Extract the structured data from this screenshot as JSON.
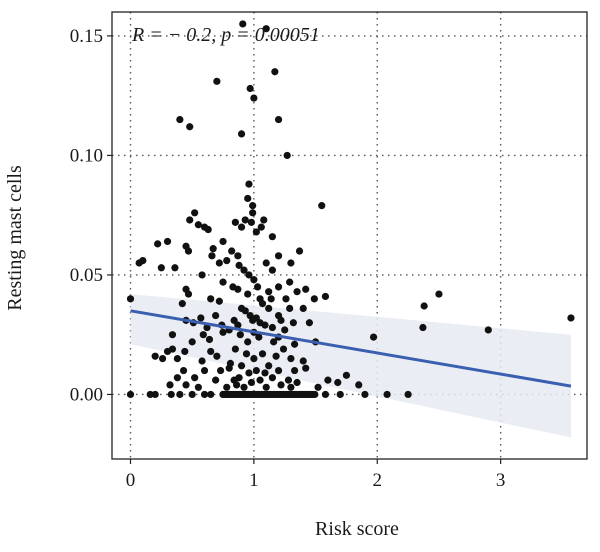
{
  "chart_data": {
    "type": "scatter",
    "title": "",
    "xlabel": "Risk score",
    "ylabel": "Resting mast cells",
    "annotation": "R = − 0.2, p = 0.00051",
    "xlim": [
      -0.15,
      3.7
    ],
    "ylim": [
      -0.027,
      0.16
    ],
    "xticks": [
      0,
      1,
      2,
      3
    ],
    "xtick_labels": [
      "0",
      "1",
      "2",
      "3"
    ],
    "yticks": [
      0.0,
      0.05,
      0.1,
      0.15
    ],
    "ytick_labels": [
      "0.00",
      "0.05",
      "0.10",
      "0.15"
    ],
    "grid": "dotted major gridlines",
    "colors": {
      "points": "#111111",
      "fit_line": "#3a5fb0",
      "ci_band": "#e6ebf2",
      "grid": "#555555",
      "frame": "#222222"
    },
    "fit": {
      "x": [
        0,
        3.57
      ],
      "y": [
        0.035,
        0.0035
      ],
      "ci_low": [
        0.021,
        -0.018
      ],
      "ci_high": [
        0.042,
        0.025
      ]
    },
    "points": [
      [
        0.91,
        0.155
      ],
      [
        1.1,
        0.153
      ],
      [
        1.17,
        0.135
      ],
      [
        0.7,
        0.131
      ],
      [
        0.97,
        0.128
      ],
      [
        1.0,
        0.124
      ],
      [
        0.4,
        0.115
      ],
      [
        0.48,
        0.112
      ],
      [
        1.2,
        0.115
      ],
      [
        0.9,
        0.109
      ],
      [
        1.27,
        0.1
      ],
      [
        0.96,
        0.088
      ],
      [
        0.95,
        0.082
      ],
      [
        0.99,
        0.079
      ],
      [
        0.99,
        0.076
      ],
      [
        1.55,
        0.079
      ],
      [
        0.52,
        0.076
      ],
      [
        0.48,
        0.073
      ],
      [
        0.55,
        0.071
      ],
      [
        0.6,
        0.07
      ],
      [
        0.63,
        0.069
      ],
      [
        0.67,
        0.061
      ],
      [
        0.75,
        0.064
      ],
      [
        0.85,
        0.072
      ],
      [
        0.9,
        0.07
      ],
      [
        0.93,
        0.073
      ],
      [
        0.98,
        0.072
      ],
      [
        1.06,
        0.07
      ],
      [
        1.08,
        0.073
      ],
      [
        1.02,
        0.068
      ],
      [
        1.15,
        0.066
      ],
      [
        0.3,
        0.064
      ],
      [
        0.22,
        0.063
      ],
      [
        0.45,
        0.062
      ],
      [
        0.47,
        0.06
      ],
      [
        0.66,
        0.058
      ],
      [
        0.72,
        0.055
      ],
      [
        0.78,
        0.056
      ],
      [
        0.82,
        0.06
      ],
      [
        0.87,
        0.058
      ],
      [
        0.1,
        0.056
      ],
      [
        0.07,
        0.055
      ],
      [
        0.25,
        0.053
      ],
      [
        0.36,
        0.053
      ],
      [
        0.58,
        0.05
      ],
      [
        0.88,
        0.054
      ],
      [
        0.92,
        0.052
      ],
      [
        0.96,
        0.05
      ],
      [
        1.1,
        0.055
      ],
      [
        1.15,
        0.052
      ],
      [
        1.2,
        0.058
      ],
      [
        1.3,
        0.055
      ],
      [
        1.37,
        0.06
      ],
      [
        1.0,
        0.048
      ],
      [
        1.03,
        0.045
      ],
      [
        0.87,
        0.044
      ],
      [
        1.12,
        0.043
      ],
      [
        1.2,
        0.045
      ],
      [
        1.29,
        0.047
      ],
      [
        0.45,
        0.044
      ],
      [
        0.47,
        0.042
      ],
      [
        0.75,
        0.047
      ],
      [
        0.83,
        0.045
      ],
      [
        0.95,
        0.042
      ],
      [
        0.65,
        0.04
      ],
      [
        0.72,
        0.039
      ],
      [
        0.0,
        0.04
      ],
      [
        0.42,
        0.038
      ],
      [
        1.05,
        0.04
      ],
      [
        1.07,
        0.038
      ],
      [
        1.14,
        0.04
      ],
      [
        1.26,
        0.04
      ],
      [
        1.35,
        0.043
      ],
      [
        1.42,
        0.044
      ],
      [
        1.49,
        0.04
      ],
      [
        1.58,
        0.041
      ],
      [
        0.9,
        0.036
      ],
      [
        0.93,
        0.035
      ],
      [
        0.97,
        0.033
      ],
      [
        1.02,
        0.032
      ],
      [
        0.84,
        0.031
      ],
      [
        0.87,
        0.029
      ],
      [
        0.99,
        0.031
      ],
      [
        1.12,
        0.036
      ],
      [
        1.2,
        0.033
      ],
      [
        1.29,
        0.036
      ],
      [
        1.4,
        0.036
      ],
      [
        0.45,
        0.031
      ],
      [
        0.51,
        0.03
      ],
      [
        0.57,
        0.032
      ],
      [
        0.62,
        0.028
      ],
      [
        0.69,
        0.033
      ],
      [
        0.74,
        0.029
      ],
      [
        1.05,
        0.03
      ],
      [
        1.09,
        0.029
      ],
      [
        1.15,
        0.028
      ],
      [
        1.22,
        0.031
      ],
      [
        1.32,
        0.03
      ],
      [
        1.45,
        0.03
      ],
      [
        0.34,
        0.025
      ],
      [
        0.5,
        0.022
      ],
      [
        0.59,
        0.025
      ],
      [
        0.64,
        0.023
      ],
      [
        0.75,
        0.026
      ],
      [
        0.8,
        0.027
      ],
      [
        0.89,
        0.025
      ],
      [
        0.95,
        0.022
      ],
      [
        1.0,
        0.026
      ],
      [
        1.04,
        0.024
      ],
      [
        1.16,
        0.022
      ],
      [
        1.2,
        0.024
      ],
      [
        1.25,
        0.027
      ],
      [
        1.33,
        0.021
      ],
      [
        1.5,
        0.022
      ],
      [
        0.3,
        0.018
      ],
      [
        0.34,
        0.019
      ],
      [
        0.44,
        0.018
      ],
      [
        0.65,
        0.018
      ],
      [
        0.7,
        0.016
      ],
      [
        0.85,
        0.019
      ],
      [
        0.94,
        0.017
      ],
      [
        1.0,
        0.015
      ],
      [
        1.07,
        0.017
      ],
      [
        1.18,
        0.016
      ],
      [
        1.24,
        0.019
      ],
      [
        1.3,
        0.015
      ],
      [
        0.2,
        0.016
      ],
      [
        0.26,
        0.015
      ],
      [
        0.38,
        0.015
      ],
      [
        0.58,
        0.014
      ],
      [
        0.81,
        0.013
      ],
      [
        0.9,
        0.012
      ],
      [
        1.12,
        0.012
      ],
      [
        1.4,
        0.014
      ],
      [
        0.43,
        0.01
      ],
      [
        0.6,
        0.01
      ],
      [
        0.73,
        0.01
      ],
      [
        0.8,
        0.011
      ],
      [
        0.96,
        0.009
      ],
      [
        1.02,
        0.01
      ],
      [
        1.09,
        0.009
      ],
      [
        1.2,
        0.01
      ],
      [
        1.33,
        0.01
      ],
      [
        1.42,
        0.011
      ],
      [
        0.38,
        0.007
      ],
      [
        0.52,
        0.007
      ],
      [
        0.69,
        0.006
      ],
      [
        0.84,
        0.006
      ],
      [
        0.88,
        0.007
      ],
      [
        0.98,
        0.005
      ],
      [
        1.05,
        0.006
      ],
      [
        1.15,
        0.007
      ],
      [
        1.28,
        0.006
      ],
      [
        1.35,
        0.005
      ],
      [
        1.6,
        0.006
      ],
      [
        1.75,
        0.008
      ],
      [
        0.32,
        0.004
      ],
      [
        0.45,
        0.004
      ],
      [
        0.55,
        0.003
      ],
      [
        0.78,
        0.003
      ],
      [
        0.86,
        0.004
      ],
      [
        0.92,
        0.003
      ],
      [
        1.1,
        0.003
      ],
      [
        1.22,
        0.004
      ],
      [
        1.3,
        0.003
      ],
      [
        1.52,
        0.003
      ],
      [
        1.68,
        0.005
      ],
      [
        1.85,
        0.004
      ],
      [
        0.0,
        0.0
      ],
      [
        0.16,
        0.0
      ],
      [
        0.2,
        0.0
      ],
      [
        0.33,
        0.0
      ],
      [
        0.4,
        0.0
      ],
      [
        0.5,
        0.0
      ],
      [
        0.6,
        0.0
      ],
      [
        0.65,
        0.0
      ],
      [
        0.75,
        0.0
      ],
      [
        0.8,
        0.0
      ],
      [
        0.95,
        0.0
      ],
      [
        1.58,
        0.0
      ],
      [
        1.7,
        0.0
      ],
      [
        1.9,
        0.0
      ],
      [
        2.08,
        0.0
      ],
      [
        2.25,
        0.0
      ],
      [
        1.97,
        0.024
      ],
      [
        2.37,
        0.028
      ],
      [
        2.38,
        0.037
      ],
      [
        2.5,
        0.042
      ],
      [
        2.9,
        0.027
      ],
      [
        3.57,
        0.032
      ]
    ],
    "zero_cluster": {
      "x_start": 0.75,
      "x_end": 1.5,
      "step": 0.012,
      "y": 0.0
    }
  }
}
